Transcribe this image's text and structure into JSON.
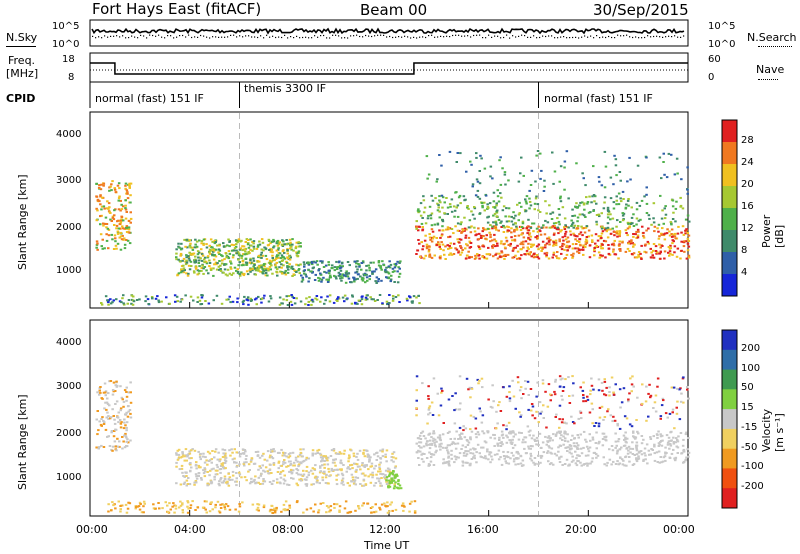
{
  "header": {
    "site": "Fort Hays East (fitACF)",
    "beam": "Beam 00",
    "date": "30/Sep/2015"
  },
  "top_panels": {
    "nsky_label": "N.Sky",
    "nsearch_label": "N.Search",
    "freq_label_1": "Freq.",
    "freq_label_2": "[MHz]",
    "nave_label": "Nave",
    "cpid_label": "CPID",
    "noise_ticks_left": [
      "10^5",
      "10^0"
    ],
    "noise_ticks_right": [
      "10^5",
      "10^0"
    ],
    "freq_ticks": [
      "18",
      "8"
    ],
    "nave_ticks": [
      "60",
      "0"
    ]
  },
  "cpid_segments": [
    {
      "label": "normal (fast) 151 IF",
      "start_hour": 0
    },
    {
      "label": "themis 3300 IF",
      "start_hour": 6
    },
    {
      "label": "normal (fast) 151 IF",
      "start_hour": 18
    }
  ],
  "chart_data": [
    {
      "type": "heatmap",
      "title": "",
      "xlabel": "Time UT",
      "ylabel": "Slant Range [km]",
      "xlim_hours": [
        0,
        24
      ],
      "ylim_km": [
        180,
        4500
      ],
      "x_ticks": [
        "00:00",
        "04:00",
        "08:00",
        "12:00",
        "16:00",
        "20:00",
        "00:00"
      ],
      "y_ticks": [
        1000,
        2000,
        3000,
        4000
      ],
      "colorbar_label": "Power [dB]",
      "colorbar_ticks": [
        4,
        8,
        12,
        16,
        20,
        24,
        28
      ],
      "colorbar_colors": [
        "#1626d8",
        "#2f5fa8",
        "#3f8a6a",
        "#4fb04a",
        "#a6c832",
        "#f0c020",
        "#f07820",
        "#e02020"
      ]
    },
    {
      "type": "heatmap",
      "title": "",
      "xlabel": "Time UT",
      "ylabel": "Slant Range [km]",
      "xlim_hours": [
        0,
        24
      ],
      "ylim_km": [
        180,
        4500
      ],
      "x_ticks": [
        "00:00",
        "04:00",
        "08:00",
        "12:00",
        "16:00",
        "20:00",
        "00:00"
      ],
      "y_ticks": [
        1000,
        2000,
        3000,
        4000
      ],
      "colorbar_label": "Velocity [m s⁻¹]",
      "colorbar_ticks": [
        200,
        100,
        50,
        15,
        -15,
        -50,
        -100,
        -200
      ],
      "colorbar_colors": [
        "#2030c0",
        "#2f6ea8",
        "#3f9a50",
        "#80d040",
        "#c8c8c8",
        "#f0d060",
        "#f09a20",
        "#f05010",
        "#e02020"
      ]
    }
  ],
  "x_axis": {
    "label": "Time UT",
    "ticks": [
      "00:00",
      "04:00",
      "08:00",
      "12:00",
      "16:00",
      "20:00",
      "00:00"
    ]
  },
  "colorbars": {
    "power_label": "Power [dB]",
    "power_ticks": [
      "28",
      "24",
      "20",
      "16",
      "12",
      "8",
      "4"
    ],
    "velocity_label": "Velocity [m s⁻¹]",
    "velocity_ticks": [
      "200",
      "100",
      "50",
      "15",
      "-15",
      "-50",
      "-100",
      "-200"
    ]
  },
  "y_axis": {
    "label": "Slant Range [km]",
    "ticks": [
      "4000",
      "3000",
      "2000",
      "1000"
    ]
  }
}
